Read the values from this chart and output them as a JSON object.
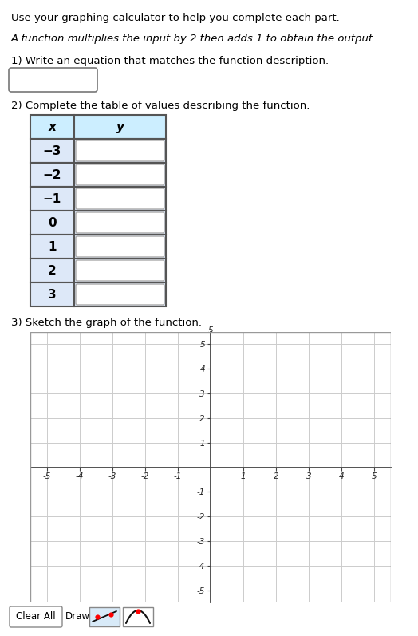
{
  "title_line1": "Use your graphing calculator to help you complete each part.",
  "title_line2": "A function multiplies the input by 2 then adds 1 to obtain the output.",
  "section1_label": "1) Write an equation that matches the function description.",
  "section2_label": "2) Complete the table of values describing the function.",
  "section3_label": "3) Sketch the graph of the function.",
  "table_x_label": "x",
  "table_y_label": "y",
  "table_x_values": [
    "−3",
    "−2",
    "−1",
    "0",
    "1",
    "2",
    "3"
  ],
  "background_color": "#ffffff",
  "grid_color": "#cccccc",
  "table_header_bg": "#cceeff",
  "table_x_cell_bg": "#dde8f8",
  "table_y_cell_bg": "#ffffff",
  "table_border_color": "#555555",
  "clear_all_text": "Clear All",
  "draw_text": "Draw:",
  "draw_icon1_bg": "#d8eaf8"
}
